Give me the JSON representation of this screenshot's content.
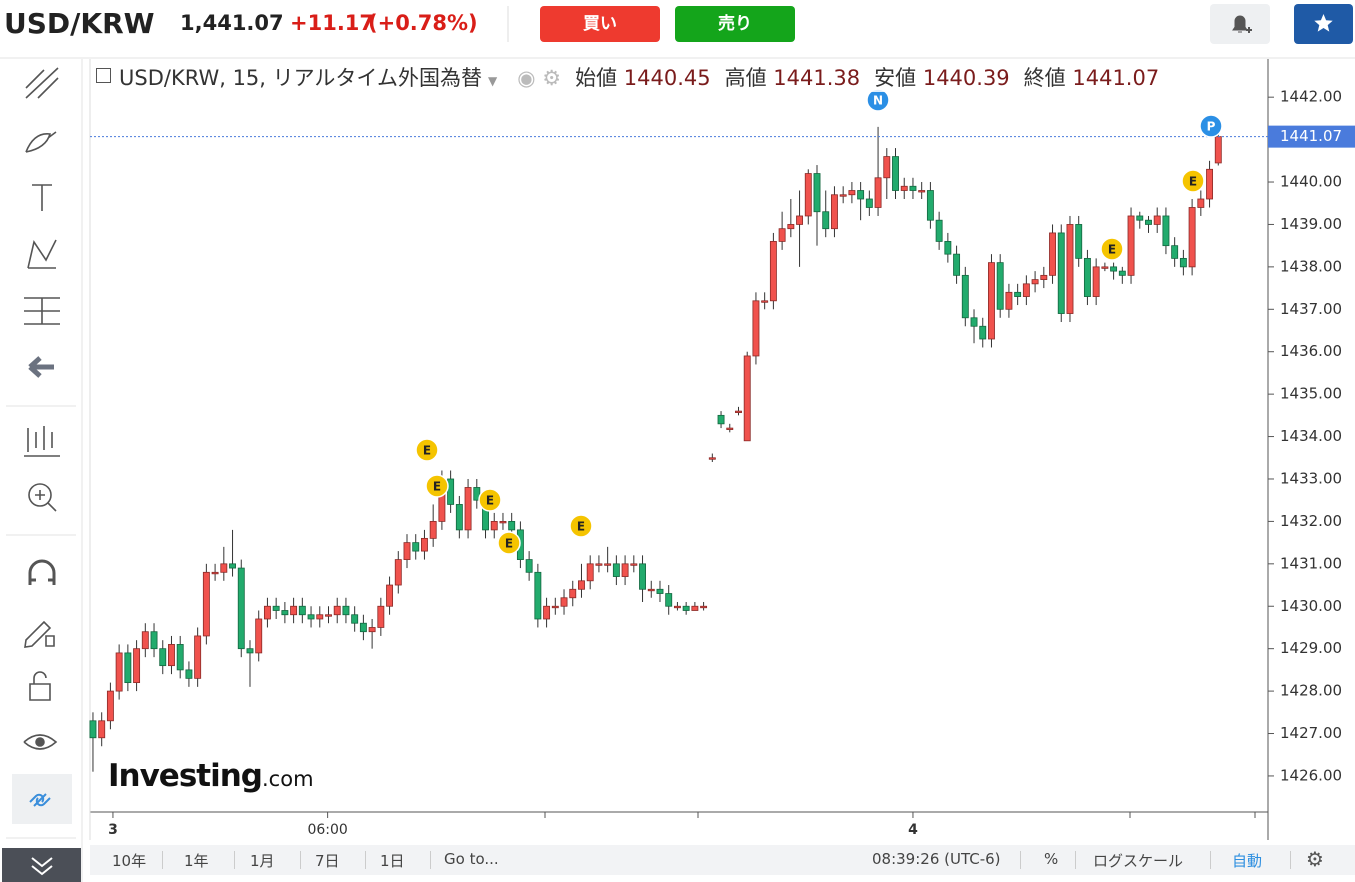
{
  "header": {
    "symbol": "USD/KRW",
    "price": "1,441.07",
    "change": "+11.17",
    "change_pct": "(+0.78%)",
    "buy": "買い",
    "sell": "売り"
  },
  "chart_data": {
    "type": "candlestick",
    "title": "USD/KRW, 15, リアルタイム外国為替",
    "legend_labels": [
      "始値",
      "高値",
      "安値",
      "終値"
    ],
    "open": [
      1427.3,
      1426.9,
      1427.3,
      1428.0,
      1428.9,
      1428.2,
      1429.0,
      1429.4,
      1429.0,
      1428.6,
      1429.1,
      1428.5,
      1428.3,
      1429.3,
      1430.8,
      1430.8,
      1431.0,
      1430.9,
      1429.0,
      1428.9,
      1429.7,
      1430.0,
      1429.9,
      1429.8,
      1430.0,
      1429.8,
      1429.7,
      1429.8,
      1429.8,
      1430.0,
      1429.8,
      1429.6,
      1429.4,
      1429.5,
      1430.0,
      1430.5,
      1431.1,
      1431.5,
      1431.3,
      1431.6,
      1432.0,
      1433.0,
      1432.4,
      1431.8,
      1432.8,
      1432.5,
      1431.8,
      1432.0,
      1432.0,
      1431.8,
      1431.1,
      1430.8,
      1429.7,
      1430.0,
      1430.0,
      1430.2,
      1430.4,
      1430.6,
      1431.0,
      1431.0,
      1431.0,
      1430.7,
      1431.0,
      1431.0,
      1430.4,
      1430.4,
      1430.3,
      1430.0,
      1430.0,
      1429.9,
      1430.0,
      1433.5,
      1434.5,
      1434.2,
      1434.6,
      1433.9,
      1435.9,
      1437.2,
      1437.2,
      1438.6,
      1438.9,
      1439.0,
      1439.2,
      1440.2,
      1439.3,
      1438.9,
      1439.7,
      1439.7,
      1439.8,
      1439.6,
      1439.4,
      1440.1,
      1440.6,
      1439.8,
      1439.9,
      1439.8,
      1439.8,
      1439.1,
      1438.6,
      1438.3,
      1437.8,
      1436.8,
      1436.6,
      1436.3,
      1438.1,
      1437.0,
      1437.4,
      1437.3,
      1437.6,
      1437.7,
      1437.8,
      1438.8,
      1436.9,
      1439.0,
      1438.2,
      1437.3,
      1438.0,
      1438.0,
      1437.9,
      1437.8,
      1439.2,
      1439.1,
      1439.0,
      1439.2,
      1438.5,
      1438.2,
      1438.0,
      1439.4,
      1439.6,
      1440.45
    ],
    "high": [
      1427.5,
      1427.5,
      1428.2,
      1429.1,
      1429.1,
      1429.2,
      1429.6,
      1429.6,
      1429.2,
      1429.3,
      1429.3,
      1428.7,
      1429.5,
      1431.0,
      1431.0,
      1431.4,
      1431.8,
      1431.1,
      1429.2,
      1429.9,
      1430.2,
      1430.2,
      1430.1,
      1430.2,
      1430.2,
      1430.0,
      1430.0,
      1430.0,
      1430.2,
      1430.2,
      1430.0,
      1429.8,
      1429.7,
      1430.2,
      1430.7,
      1431.3,
      1431.7,
      1431.7,
      1431.8,
      1432.4,
      1433.2,
      1433.2,
      1432.6,
      1433.0,
      1433.0,
      1432.7,
      1432.2,
      1432.2,
      1432.2,
      1432.0,
      1431.3,
      1431.0,
      1430.2,
      1430.2,
      1430.4,
      1430.6,
      1431.0,
      1431.2,
      1431.2,
      1431.4,
      1431.2,
      1431.2,
      1431.2,
      1431.2,
      1430.6,
      1430.6,
      1430.5,
      1430.1,
      1430.1,
      1430.1,
      1430.1,
      1433.6,
      1434.6,
      1434.3,
      1434.7,
      1436.0,
      1437.4,
      1437.4,
      1438.8,
      1439.3,
      1439.6,
      1439.8,
      1440.3,
      1440.4,
      1439.8,
      1439.9,
      1439.9,
      1440.0,
      1440.0,
      1439.8,
      1441.3,
      1440.8,
      1440.8,
      1440.1,
      1440.1,
      1440.0,
      1440.0,
      1439.3,
      1438.8,
      1438.5,
      1438.0,
      1437.0,
      1436.8,
      1438.3,
      1438.3,
      1437.6,
      1437.6,
      1437.8,
      1437.9,
      1438.0,
      1439.0,
      1439.0,
      1439.2,
      1439.2,
      1438.4,
      1438.2,
      1438.1,
      1438.1,
      1438.0,
      1439.4,
      1439.3,
      1439.2,
      1439.4,
      1439.4,
      1438.7,
      1438.4,
      1439.6,
      1439.8,
      1440.5,
      1441.38
    ],
    "low": [
      1426.1,
      1426.7,
      1427.1,
      1427.8,
      1428.0,
      1428.0,
      1428.8,
      1428.8,
      1428.4,
      1428.4,
      1428.3,
      1428.1,
      1428.1,
      1429.1,
      1430.6,
      1430.6,
      1430.7,
      1428.8,
      1428.1,
      1428.7,
      1429.5,
      1429.7,
      1429.6,
      1429.6,
      1429.6,
      1429.5,
      1429.5,
      1429.6,
      1429.6,
      1429.6,
      1429.4,
      1429.2,
      1429.0,
      1429.3,
      1429.8,
      1430.3,
      1430.9,
      1431.1,
      1431.1,
      1431.4,
      1431.8,
      1432.2,
      1431.6,
      1431.6,
      1432.3,
      1431.6,
      1431.6,
      1431.8,
      1431.6,
      1430.9,
      1430.6,
      1429.5,
      1429.5,
      1429.8,
      1429.8,
      1430.0,
      1430.2,
      1430.4,
      1430.8,
      1430.8,
      1430.5,
      1430.5,
      1430.8,
      1430.1,
      1430.2,
      1430.1,
      1429.8,
      1429.9,
      1429.8,
      1429.9,
      1429.9,
      1433.4,
      1434.2,
      1434.1,
      1434.5,
      1433.9,
      1435.7,
      1437.0,
      1437.0,
      1438.4,
      1438.7,
      1438.0,
      1439.0,
      1438.5,
      1438.7,
      1438.7,
      1439.5,
      1439.5,
      1439.1,
      1439.2,
      1439.2,
      1439.6,
      1439.6,
      1439.6,
      1439.6,
      1439.6,
      1438.9,
      1438.4,
      1438.1,
      1437.6,
      1436.6,
      1436.2,
      1436.1,
      1436.1,
      1436.8,
      1436.8,
      1437.1,
      1437.1,
      1437.4,
      1437.5,
      1437.6,
      1436.7,
      1436.7,
      1438.0,
      1437.1,
      1437.1,
      1437.9,
      1437.7,
      1437.6,
      1437.6,
      1438.9,
      1438.8,
      1438.8,
      1438.3,
      1438.0,
      1437.8,
      1437.8,
      1439.2,
      1439.4,
      1440.39
    ],
    "close": [
      1426.9,
      1427.3,
      1428.0,
      1428.9,
      1428.2,
      1429.0,
      1429.4,
      1429.0,
      1428.6,
      1429.1,
      1428.5,
      1428.3,
      1429.3,
      1430.8,
      1430.8,
      1431.0,
      1430.9,
      1429.0,
      1428.9,
      1429.7,
      1430.0,
      1429.9,
      1429.8,
      1430.0,
      1429.8,
      1429.7,
      1429.8,
      1429.8,
      1430.0,
      1429.8,
      1429.6,
      1429.4,
      1429.5,
      1430.0,
      1430.5,
      1431.1,
      1431.5,
      1431.3,
      1431.6,
      1432.0,
      1433.0,
      1432.4,
      1431.8,
      1432.8,
      1432.5,
      1431.8,
      1432.0,
      1432.0,
      1431.8,
      1431.1,
      1430.8,
      1429.7,
      1430.0,
      1430.0,
      1430.2,
      1430.4,
      1430.6,
      1431.0,
      1431.0,
      1431.0,
      1430.7,
      1431.0,
      1431.0,
      1430.4,
      1430.4,
      1430.3,
      1430.0,
      1430.0,
      1429.9,
      1430.0,
      1430.0,
      1433.5,
      1434.3,
      1434.2,
      1434.6,
      1435.9,
      1437.2,
      1437.2,
      1438.6,
      1438.9,
      1439.0,
      1439.2,
      1440.2,
      1439.3,
      1438.9,
      1439.7,
      1439.7,
      1439.8,
      1439.6,
      1439.4,
      1440.1,
      1440.6,
      1439.8,
      1439.9,
      1439.8,
      1439.8,
      1439.1,
      1438.6,
      1438.3,
      1437.8,
      1436.8,
      1436.6,
      1436.3,
      1438.1,
      1437.0,
      1437.4,
      1437.3,
      1437.6,
      1437.7,
      1437.8,
      1438.8,
      1436.9,
      1439.0,
      1438.2,
      1437.3,
      1438.0,
      1438.0,
      1437.9,
      1437.8,
      1439.2,
      1439.1,
      1439.0,
      1439.2,
      1438.5,
      1438.2,
      1438.0,
      1439.4,
      1439.6,
      1440.3,
      1441.07
    ],
    "up_color": "#f0524d",
    "down_color": "#22ab6d",
    "last_price_color": "#4a7bdc",
    "xlim": [
      -0.34,
      134.7
    ],
    "xticks": [
      {
        "value": 2.29,
        "label": "3"
      },
      {
        "value": 26.9,
        "label": "06:00"
      },
      {
        "value": 94.0,
        "label": "4"
      }
    ],
    "ylim": [
      1425.15,
      1442.9
    ],
    "yticks": [
      {
        "value": 1426,
        "label": "1426.00"
      },
      {
        "value": 1427,
        "label": "1427.00"
      },
      {
        "value": 1428,
        "label": "1428.00"
      },
      {
        "value": 1429,
        "label": "1429.00"
      },
      {
        "value": 1430,
        "label": "1430.00"
      },
      {
        "value": 1431,
        "label": "1431.00"
      },
      {
        "value": 1432,
        "label": "1432.00"
      },
      {
        "value": 1433,
        "label": "1433.00"
      },
      {
        "value": 1434,
        "label": "1434.00"
      },
      {
        "value": 1435,
        "label": "1435.00"
      },
      {
        "value": 1436,
        "label": "1436.00"
      },
      {
        "value": 1437,
        "label": "1437.00"
      },
      {
        "value": 1438,
        "label": "1438.00"
      },
      {
        "value": 1439,
        "label": "1439.00"
      },
      {
        "value": 1440,
        "label": "1440.00"
      },
      {
        "value": 1441,
        "label": "1441.00"
      },
      {
        "value": 1442,
        "label": "1442.00"
      }
    ],
    "events": [
      "E",
      "E",
      "E",
      "E",
      "E",
      "E",
      "E",
      "N",
      "P"
    ]
  },
  "toolbar": {
    "timeframes": [
      "10年",
      "1年",
      "1月",
      "7日",
      "1日"
    ],
    "goto": "Go to...",
    "clock": "08:39:26 (UTC-6)",
    "percent": "%",
    "log": "ログスケール",
    "auto": "自動"
  },
  "logo": {
    "brand": "Investing",
    "suffix": ".com"
  }
}
